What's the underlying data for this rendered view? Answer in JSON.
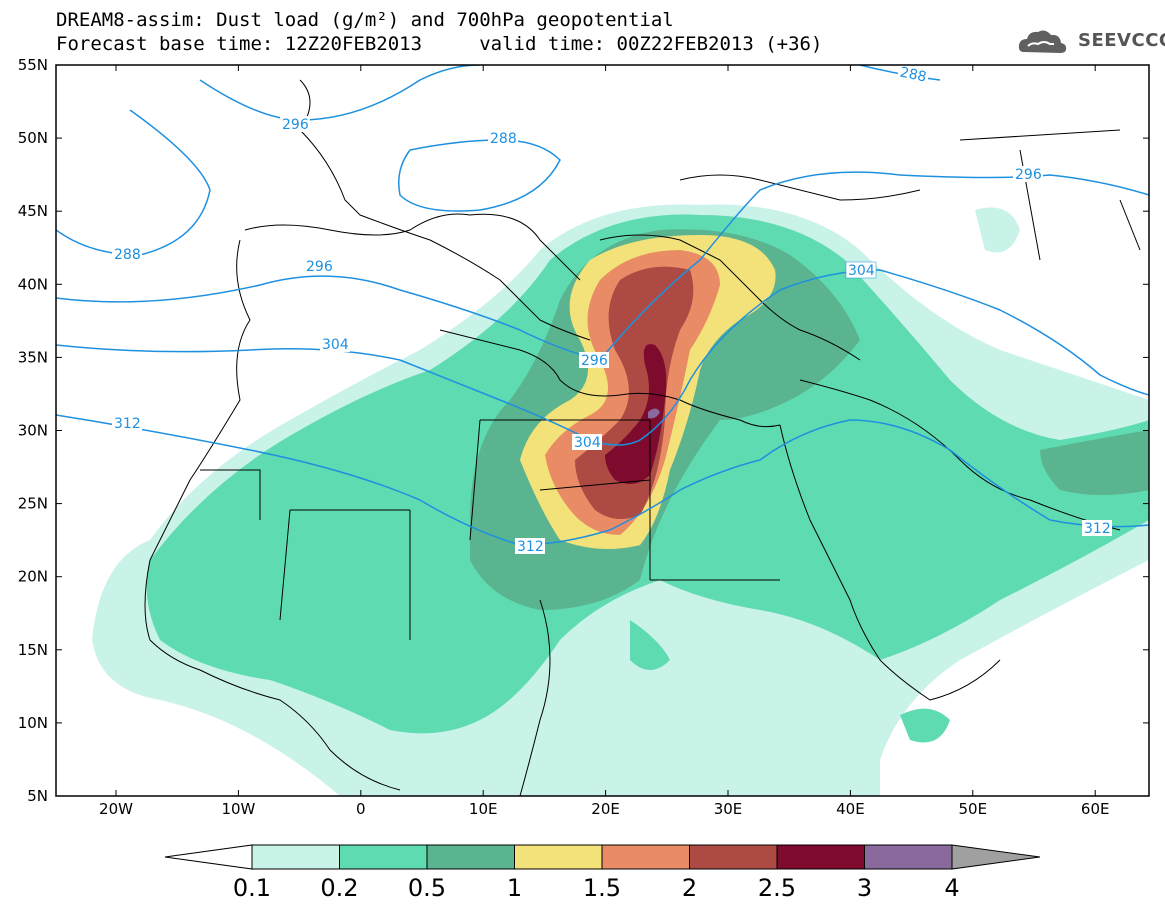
{
  "header": {
    "title_line1": "DREAM8-assim: Dust load (g/m²) and 700hPa geopotential",
    "title_line2": "Forecast base time: 12Z20FEB2013     valid time: 00Z22FEB2013 (+36)",
    "logo_text": "SEEVCCC"
  },
  "axes": {
    "lat_labels": [
      "55N",
      "50N",
      "45N",
      "40N",
      "35N",
      "30N",
      "25N",
      "20N",
      "15N",
      "10N",
      "5N"
    ],
    "lon_labels": [
      "20W",
      "10W",
      "0",
      "10E",
      "20E",
      "30E",
      "40E",
      "50E",
      "60E"
    ]
  },
  "colorbar": {
    "labels": [
      "0.1",
      "0.2",
      "0.5",
      "1",
      "1.5",
      "2",
      "2.5",
      "3",
      "4"
    ],
    "colors": [
      "#c9f2e8",
      "#5fdbb2",
      "#5ab48f",
      "#f3e27a",
      "#e98c66",
      "#ac4a43",
      "#7e0a2e",
      "#8a6a9c",
      "#a0a0a0"
    ]
  },
  "contour_labels": [
    "288",
    "296",
    "288",
    "288",
    "296",
    "296",
    "304",
    "304",
    "296",
    "312",
    "304",
    "312",
    "312"
  ],
  "colors": {
    "contour": "#1e90e0",
    "coast": "#000000"
  }
}
